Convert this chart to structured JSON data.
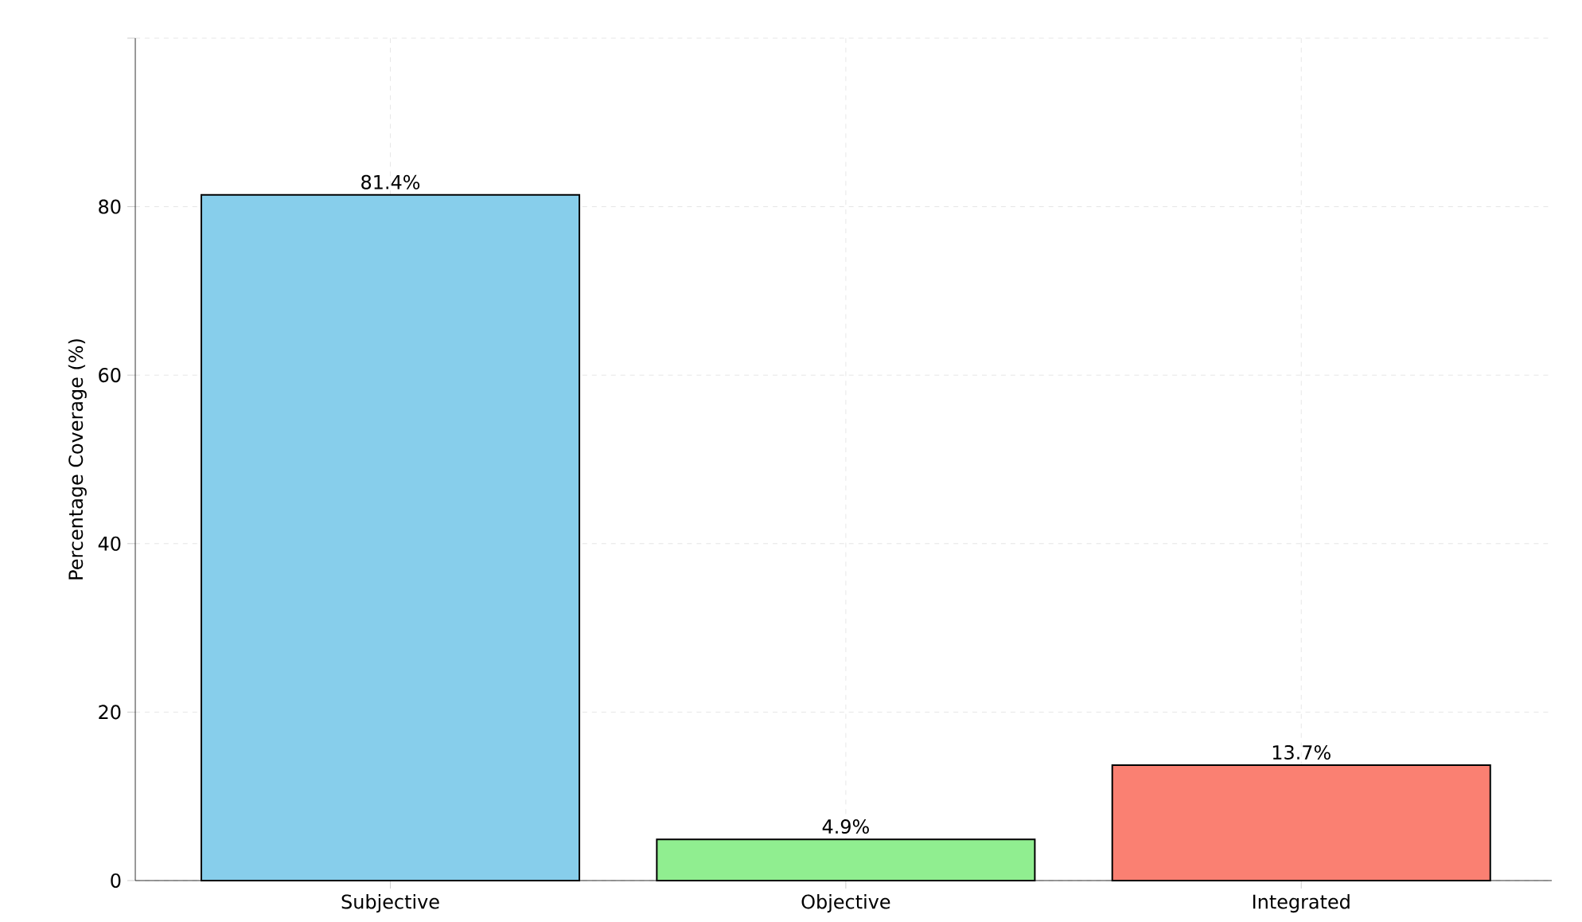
{
  "chart_data": {
    "type": "bar",
    "ylabel": "Percentage Coverage (%)",
    "categories": [
      "Subjective",
      "Objective",
      "Integrated"
    ],
    "values": [
      81.4,
      4.9,
      13.7
    ],
    "colors": [
      "#87ceeb",
      "#90ee90",
      "#fa8072"
    ],
    "value_labels": [
      "81.4%",
      "4.9%",
      "13.7%"
    ],
    "ylim": [
      0,
      100
    ],
    "yticks": [
      0,
      20,
      40,
      60,
      80,
      {
        "value": 100,
        "label": null
      }
    ],
    "grid": true
  }
}
